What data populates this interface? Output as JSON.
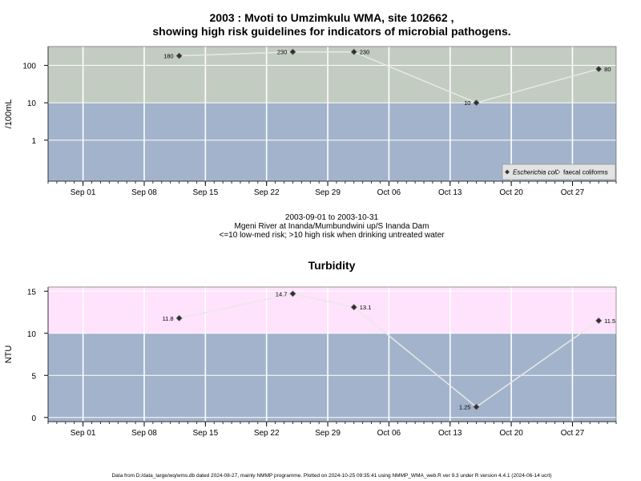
{
  "colors": {
    "low_band": "#a3b3cc",
    "high_band_1": "#c3ccc1",
    "high_band_2": "#ffe2fb",
    "grid": "#ffffff",
    "line": "#e8e8e8",
    "point": "#303030"
  },
  "texts": {
    "title1_line1": "2003 : Mvoti to Umzimkulu WMA, site 102662 ,",
    "title1_line2": "showing high risk guidelines for indicators of microbial pathogens.",
    "sub_line1": "2003-09-01 to 2003-10-31",
    "sub_line2": "Mgeni River at Inanda/Mumbundwini up/S Inanda Dam",
    "sub_line3": "<=10 low-med risk; >10 high risk when drinking untreated water",
    "title2": "Turbidity",
    "footer": "Data from D:/data_large/wq/wms.db dated 2024-08-27, mainly NMMP programme. Plotted on 2024-10-25 09:35:41 using NMMP_WMA_web.R ver 9.3 under R version 4.4.1 (2024-06-14 ucrt)"
  },
  "chart_data": [
    {
      "type": "line",
      "title": "2003 : Mvoti to Umzimkulu WMA, site 102662 , showing high risk guidelines for indicators of microbial pathogens.",
      "ylabel": "/100mL",
      "yscale": "log",
      "x_range": [
        "2003-08-28",
        "2003-11-01"
      ],
      "y_range": [
        0.08,
        320
      ],
      "y_ticks": [
        1,
        10,
        100
      ],
      "y_tick_labels": [
        "1",
        "10",
        "100"
      ],
      "x_ticks": [
        "2003-09-01",
        "2003-09-08",
        "2003-09-15",
        "2003-09-22",
        "2003-09-29",
        "2003-10-06",
        "2003-10-13",
        "2003-10-20",
        "2003-10-27"
      ],
      "x_tick_labels": [
        "Sep 01",
        "Sep 08",
        "Sep 15",
        "Sep 22",
        "Sep 29",
        "Oct 06",
        "Oct 13",
        "Oct 20",
        "Oct 27"
      ],
      "threshold": 10,
      "grid": true,
      "legend_position": "bottom-right",
      "legend": [
        {
          "name": "Escherichia coli",
          "marker": "filled-diamond",
          "italic": true
        },
        {
          "name": "faecal coliforms",
          "marker": "open-diamond",
          "italic": false
        }
      ],
      "series": [
        {
          "name": "Escherichia coli",
          "x": [
            "2003-09-12",
            "2003-09-25",
            "2003-10-02",
            "2003-10-16",
            "2003-10-30"
          ],
          "y": [
            180,
            230,
            230,
            10,
            80
          ],
          "labels": [
            "180",
            "230",
            "230",
            "10",
            "80"
          ],
          "label_side": [
            "left",
            "left",
            "right",
            "left",
            "right"
          ]
        }
      ]
    },
    {
      "type": "line",
      "title": "Turbidity",
      "ylabel": "NTU",
      "x_range": [
        "2003-08-28",
        "2003-11-01"
      ],
      "y_range": [
        -0.5,
        15.5
      ],
      "y_ticks": [
        0,
        5,
        10,
        15
      ],
      "y_tick_labels": [
        "0",
        "5",
        "10",
        "15"
      ],
      "x_ticks": [
        "2003-09-01",
        "2003-09-08",
        "2003-09-15",
        "2003-09-22",
        "2003-09-29",
        "2003-10-06",
        "2003-10-13",
        "2003-10-20",
        "2003-10-27"
      ],
      "x_tick_labels": [
        "Sep 01",
        "Sep 08",
        "Sep 15",
        "Sep 22",
        "Sep 29",
        "Oct 06",
        "Oct 13",
        "Oct 20",
        "Oct 27"
      ],
      "threshold": 10,
      "grid": true,
      "series": [
        {
          "x": [
            "2003-09-12",
            "2003-09-25",
            "2003-10-02",
            "2003-10-16",
            "2003-10-30"
          ],
          "y": [
            11.8,
            14.7,
            13.1,
            1.25,
            11.5
          ],
          "labels": [
            "11.8",
            "14.7",
            "13.1",
            "1.25",
            "11.5"
          ],
          "label_side": [
            "left",
            "left",
            "right",
            "left",
            "right"
          ]
        }
      ]
    }
  ]
}
